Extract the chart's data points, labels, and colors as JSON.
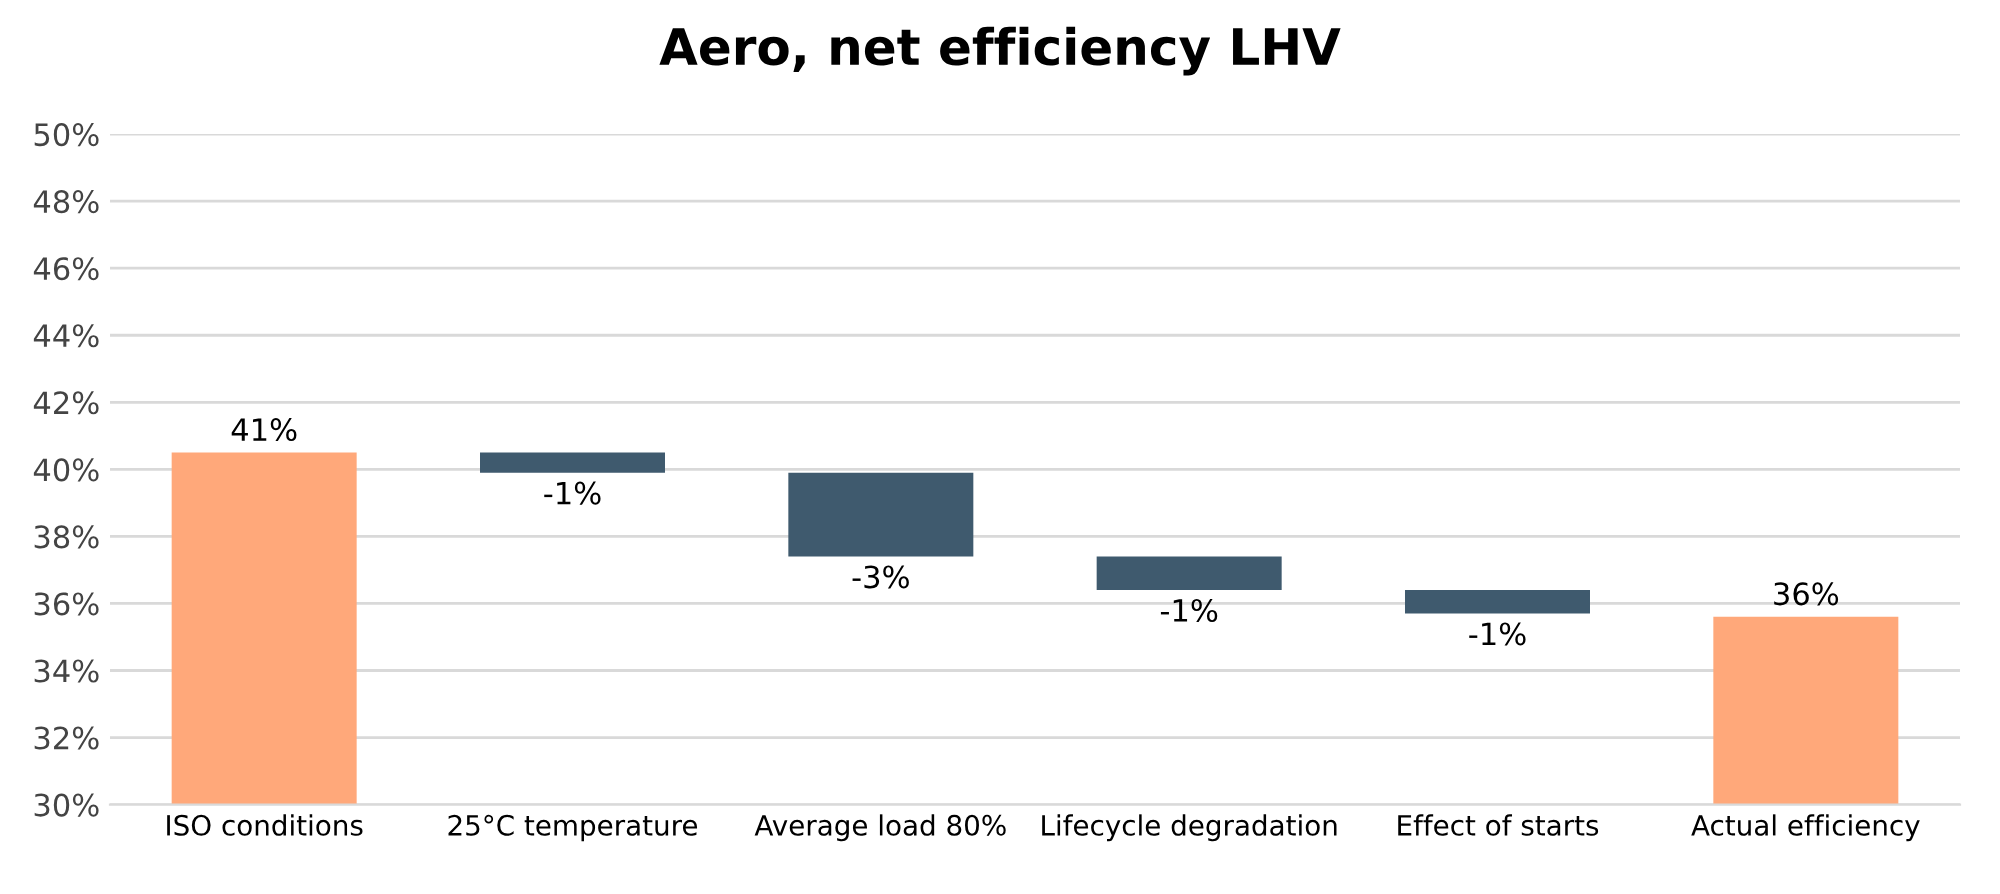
{
  "chart_data": {
    "type": "bar",
    "title": "Aero, net efficiency LHV",
    "categories": [
      "ISO conditions",
      "25°C temperature",
      "Average load 80%",
      "Lifecycle degradation",
      "Effect of starts",
      "Actual efficiency"
    ],
    "base": [
      30,
      40.5,
      39.9,
      37.4,
      36.4,
      30
    ],
    "values": [
      10.5,
      -0.6,
      -2.5,
      -1.0,
      -0.7,
      5.6
    ],
    "colors": [
      "#ffa87a",
      "#3f5a6e",
      "#3f5a6e",
      "#3f5a6e",
      "#3f5a6e",
      "#ffa87a"
    ],
    "value_labels": [
      "41%",
      "-1%",
      "-3%",
      "-1%",
      "-1%",
      "36%"
    ],
    "ylim": [
      30,
      50
    ],
    "yticks": [
      {
        "value": 30,
        "label": "30%"
      },
      {
        "value": 32,
        "label": "32%"
      },
      {
        "value": 34,
        "label": "34%"
      },
      {
        "value": 36,
        "label": "36%"
      },
      {
        "value": 38,
        "label": "38%"
      },
      {
        "value": 40,
        "label": "40%"
      },
      {
        "value": 42,
        "label": "42%"
      },
      {
        "value": 44,
        "label": "44%"
      },
      {
        "value": 46,
        "label": "46%"
      },
      {
        "value": 48,
        "label": "48%"
      },
      {
        "value": 50,
        "label": "50%"
      }
    ],
    "grid": "y",
    "legend": false
  }
}
